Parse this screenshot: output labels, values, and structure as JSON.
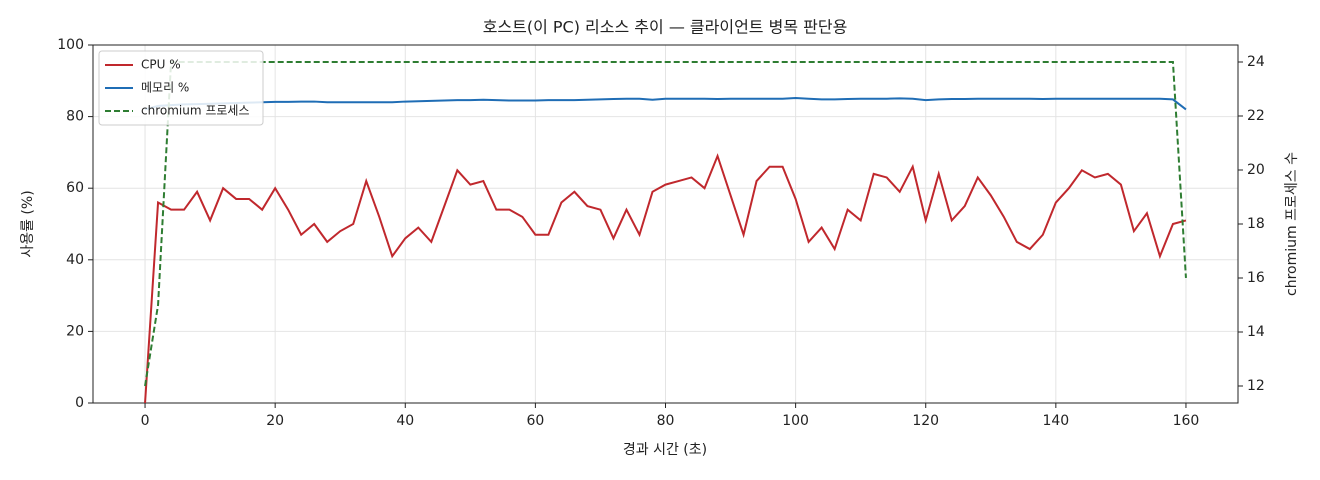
{
  "chart_data": {
    "type": "line",
    "title": "호스트(이 PC) 리소스 추이 — 클라이언트 병목 판단용",
    "xlabel": "경과 시간 (초)",
    "ylabel": "사용률 (%)",
    "y2label": "chromium 프로세스 수",
    "x": [
      0,
      2,
      4,
      6,
      8,
      10,
      12,
      14,
      16,
      18,
      20,
      22,
      24,
      26,
      28,
      30,
      32,
      34,
      36,
      38,
      40,
      42,
      44,
      46,
      48,
      50,
      52,
      54,
      56,
      58,
      60,
      62,
      64,
      66,
      68,
      70,
      72,
      74,
      76,
      78,
      80,
      82,
      84,
      86,
      88,
      90,
      92,
      94,
      96,
      98,
      100,
      102,
      104,
      106,
      108,
      110,
      112,
      114,
      116,
      118,
      120,
      122,
      124,
      126,
      128,
      130,
      132,
      134,
      136,
      138,
      140,
      142,
      144,
      146,
      148,
      150,
      152,
      154,
      156,
      158,
      160
    ],
    "series": [
      {
        "name": "CPU %",
        "color": "#c0282d",
        "dashed": false,
        "values": [
          0,
          56,
          54,
          54,
          59,
          51,
          60,
          57,
          57,
          54,
          60,
          54,
          47,
          50,
          45,
          48,
          50,
          62,
          52,
          41,
          46,
          49,
          45,
          55,
          65,
          61,
          62,
          54,
          54,
          52,
          47,
          47,
          56,
          59,
          55,
          54,
          46,
          54,
          47,
          59,
          61,
          62,
          63,
          60,
          69,
          58,
          47,
          62,
          66,
          66,
          57,
          45,
          49,
          43,
          54,
          51,
          64,
          63,
          59,
          66,
          51,
          64,
          51,
          55,
          63,
          58,
          52,
          45,
          43,
          47,
          56,
          60,
          65,
          63,
          64,
          61,
          48,
          53,
          41,
          50,
          51
        ]
      },
      {
        "name": "메모리 %",
        "color": "#1f6db5",
        "dashed": false,
        "values": [
          82,
          83,
          83.2,
          83.4,
          83.5,
          83.6,
          83.7,
          83.8,
          83.9,
          84,
          84.1,
          84.1,
          84.2,
          84.2,
          84,
          84,
          84,
          84,
          84,
          84,
          84.2,
          84.3,
          84.4,
          84.5,
          84.6,
          84.6,
          84.7,
          84.6,
          84.5,
          84.5,
          84.5,
          84.6,
          84.6,
          84.6,
          84.7,
          84.8,
          84.9,
          85,
          85,
          84.7,
          85,
          85,
          85,
          85,
          84.9,
          85,
          85,
          85,
          85,
          85,
          85.2,
          85,
          84.8,
          84.8,
          84.9,
          85,
          85,
          85,
          85.1,
          85,
          84.6,
          84.8,
          84.9,
          84.9,
          85,
          85,
          85,
          85,
          85,
          84.9,
          85,
          85,
          85,
          85,
          85,
          85,
          85,
          85,
          85,
          84.8,
          82
        ]
      },
      {
        "name": "chromium 프로세스",
        "color": "#2e7d32",
        "dashed": true,
        "axis": "y2",
        "values": [
          12,
          15,
          24,
          24,
          24,
          24,
          24,
          24,
          24,
          24,
          24,
          24,
          24,
          24,
          24,
          24,
          24,
          24,
          24,
          24,
          24,
          24,
          24,
          24,
          24,
          24,
          24,
          24,
          24,
          24,
          24,
          24,
          24,
          24,
          24,
          24,
          24,
          24,
          24,
          24,
          24,
          24,
          24,
          24,
          24,
          24,
          24,
          24,
          24,
          24,
          24,
          24,
          24,
          24,
          24,
          24,
          24,
          24,
          24,
          24,
          24,
          24,
          24,
          24,
          24,
          24,
          24,
          24,
          24,
          24,
          24,
          24,
          24,
          24,
          24,
          24,
          24,
          24,
          24,
          24,
          16
        ]
      }
    ],
    "xlim": [
      -8,
      168
    ],
    "xticks": [
      0,
      20,
      40,
      60,
      80,
      100,
      120,
      140,
      160
    ],
    "ylim": [
      0,
      100
    ],
    "yticks": [
      0,
      20,
      40,
      60,
      80,
      100
    ],
    "y2lim": [
      11.37,
      24.63
    ],
    "y2ticks": [
      12,
      14,
      16,
      18,
      20,
      22,
      24
    ],
    "grid": true,
    "legend": "upper-left"
  }
}
